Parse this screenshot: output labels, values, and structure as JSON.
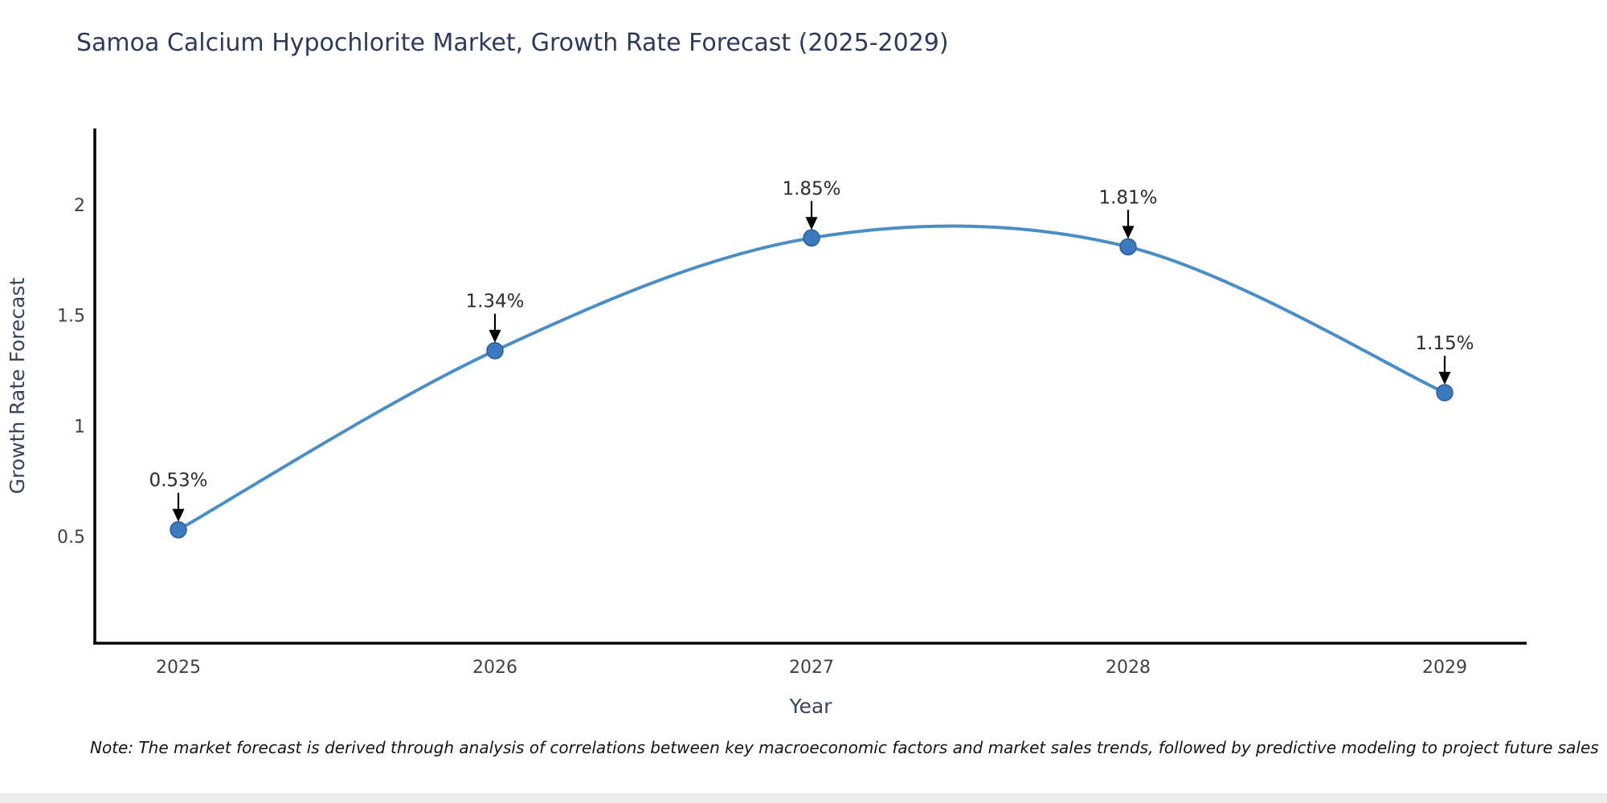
{
  "chart_data": {
    "type": "line",
    "title": "Samoa Calcium Hypochlorite Market, Growth Rate Forecast (2025-2029)",
    "xlabel": "Year",
    "ylabel": "Growth Rate Forecast",
    "categories": [
      "2025",
      "2026",
      "2027",
      "2028",
      "2029"
    ],
    "values": [
      0.53,
      1.34,
      1.85,
      1.81,
      1.15
    ],
    "point_labels": [
      "0.53%",
      "1.34%",
      "1.85%",
      "1.81%",
      "1.15%"
    ],
    "yticks": [
      0.5,
      1,
      1.5,
      2
    ],
    "ylim": [
      0.02,
      2.35
    ],
    "grid": false,
    "legend": "none",
    "smooth": true,
    "line_color": "#4a8ec5",
    "marker_color": "#3b7abd",
    "marker_edge_color": "#2c5d91",
    "axis_color": "#000000",
    "annotation_arrow_color": "#000000"
  },
  "note": "Note: The market forecast is derived through analysis of correlations between key macroeconomic factors and market sales trends, followed by predictive modeling to project future sales"
}
